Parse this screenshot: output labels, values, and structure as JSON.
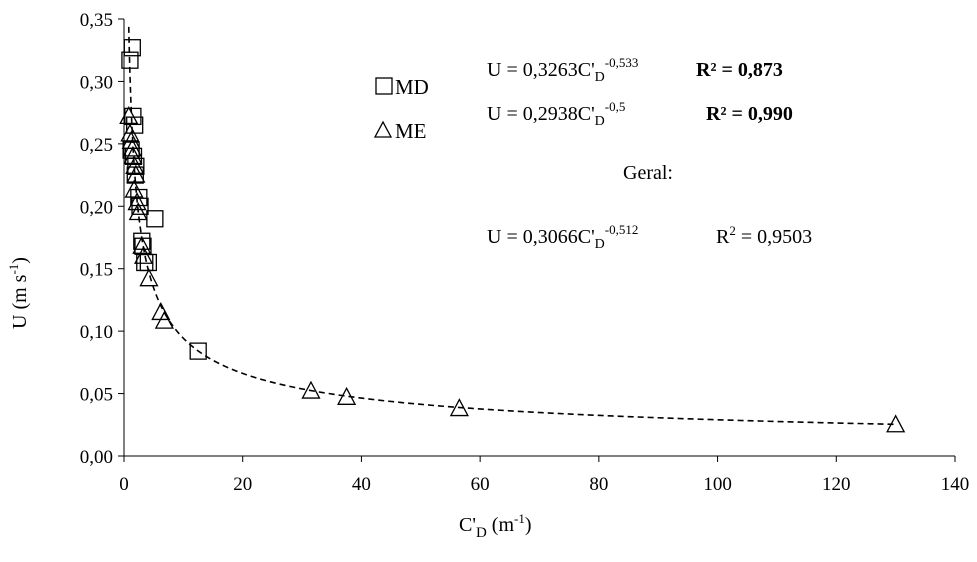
{
  "chart_data": {
    "type": "scatter",
    "xlabel": {
      "main": "C'",
      "sub": "D",
      "after": " (m",
      "sup": "-1",
      "close": ")"
    },
    "ylabel": {
      "main": "U (m s",
      "sup": "-1",
      "close": ")"
    },
    "xlim": [
      0,
      140
    ],
    "ylim": [
      0,
      0.35
    ],
    "xticks": [
      0,
      20,
      40,
      60,
      80,
      100,
      120,
      140
    ],
    "xtick_labels": [
      "0",
      "20",
      "40",
      "60",
      "80",
      "100",
      "120",
      "140"
    ],
    "yticks": [
      0,
      0.05,
      0.1,
      0.15,
      0.2,
      0.25,
      0.3,
      0.35
    ],
    "ytick_labels": [
      "0,00",
      "0,05",
      "0,10",
      "0,15",
      "0,20",
      "0,25",
      "0,30",
      "0,35"
    ],
    "grid": false,
    "legend_position": "top-center",
    "series": [
      {
        "name": "MD",
        "marker": "square",
        "points": [
          [
            1.4,
            0.327
          ],
          [
            1.0,
            0.317
          ],
          [
            1.5,
            0.272
          ],
          [
            1.8,
            0.265
          ],
          [
            1.2,
            0.245
          ],
          [
            1.6,
            0.24
          ],
          [
            2.0,
            0.232
          ],
          [
            1.9,
            0.225
          ],
          [
            2.5,
            0.207
          ],
          [
            2.7,
            0.2
          ],
          [
            5.2,
            0.19
          ],
          [
            3.0,
            0.172
          ],
          [
            3.2,
            0.168
          ],
          [
            4.1,
            0.155
          ],
          [
            3.5,
            0.155
          ],
          [
            12.5,
            0.084
          ]
        ]
      },
      {
        "name": "ME",
        "marker": "triangle",
        "points": [
          [
            0.8,
            0.272
          ],
          [
            1.0,
            0.258
          ],
          [
            1.2,
            0.252
          ],
          [
            1.4,
            0.246
          ],
          [
            1.5,
            0.24
          ],
          [
            1.8,
            0.232
          ],
          [
            2.0,
            0.225
          ],
          [
            1.7,
            0.213
          ],
          [
            2.2,
            0.203
          ],
          [
            2.4,
            0.195
          ],
          [
            3.0,
            0.168
          ],
          [
            3.3,
            0.16
          ],
          [
            4.2,
            0.142
          ],
          [
            6.2,
            0.115
          ],
          [
            6.8,
            0.108
          ],
          [
            31.5,
            0.052
          ],
          [
            37.5,
            0.047
          ],
          [
            56.5,
            0.038
          ],
          [
            130.0,
            0.025
          ]
        ]
      }
    ],
    "fit_curve": {
      "a": 0.3066,
      "b": -0.512,
      "style": "dashed",
      "x_range": [
        0.8,
        130
      ]
    },
    "equations": [
      {
        "lhs": "U = 0,3263C'",
        "sub": "D",
        "sup": "-0,533",
        "r2": "R² = 0,873",
        "r2_bold": true
      },
      {
        "lhs": "U = 0,2938C'",
        "sub": "D",
        "sup": "-0,5",
        "r2": "R² = 0,990",
        "r2_bold": true
      },
      {
        "label": "Geral:"
      },
      {
        "lhs": "U = 0,3066C'",
        "sub": "D",
        "sup": "-0,512",
        "r2": "R",
        "r2_sup": "2",
        "r2_tail": " = 0,9503"
      }
    ]
  }
}
